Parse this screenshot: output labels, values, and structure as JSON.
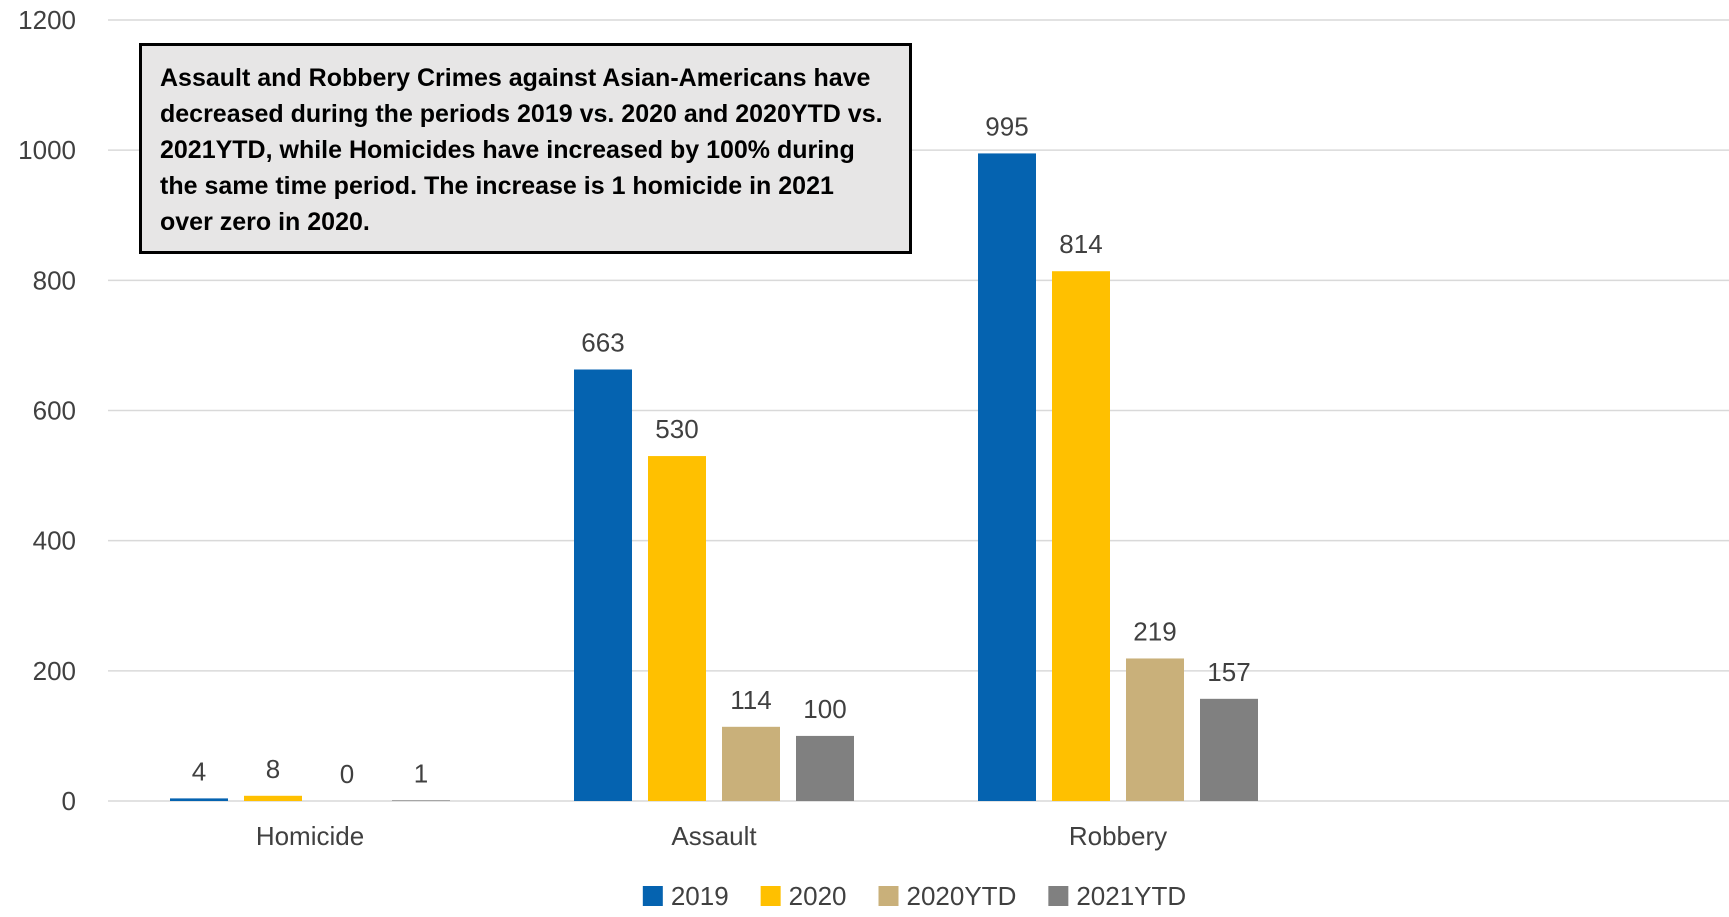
{
  "chart_data": {
    "type": "bar",
    "categories": [
      "Homicide",
      "Assault",
      "Robbery"
    ],
    "series": [
      {
        "name": "2019",
        "color": "#0563b0",
        "values": [
          4,
          663,
          995
        ]
      },
      {
        "name": "2020",
        "color": "#ffc000",
        "values": [
          8,
          530,
          814
        ]
      },
      {
        "name": "2020YTD",
        "color": "#c9b07a",
        "values": [
          0,
          114,
          219
        ]
      },
      {
        "name": "2021YTD",
        "color": "#808080",
        "values": [
          1,
          100,
          157
        ]
      }
    ],
    "ylim": [
      0,
      1200
    ],
    "yticks": [
      "0",
      "200",
      "400",
      "600",
      "800",
      "1000",
      "1200"
    ],
    "grid": true,
    "legend_position": "bottom",
    "annotation": "Assault and Robbery Crimes against Asian-Americans have decreased during the periods 2019 vs. 2020 and 2020YTD vs. 2021YTD, while Homicides have increased by 100% during the same time period. The increase is 1 homicide in 2021 over zero in 2020.",
    "colors": {
      "gridline": "#d9d9d9",
      "annotation_background": "#e7e6e6",
      "annotation_border": "#000000",
      "text": "#404040"
    }
  }
}
